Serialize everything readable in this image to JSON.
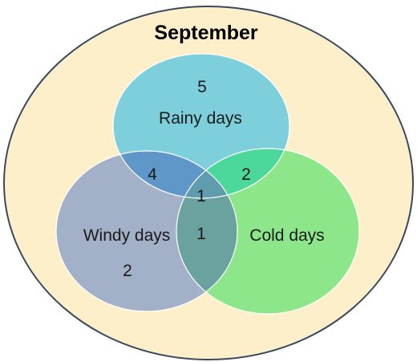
{
  "title": "September",
  "colors": {
    "universe_fill": "#fdefca",
    "universe_stroke": "#3a4a5e",
    "rainy": "#7ecfdc",
    "windy": "#a3b1c8",
    "cold": "#8ee68a",
    "rainy_windy": "#5e97c8",
    "rainy_cold": "#4cd89a",
    "windy_cold": "#6aa2a0",
    "all_three": "#5e9cae",
    "outline": "#ffffff"
  },
  "sets": {
    "rainy": {
      "label": "Rainy days",
      "only": "5"
    },
    "windy": {
      "label": "Windy days",
      "only": "2"
    },
    "cold": {
      "label": "Cold days",
      "only": ""
    }
  },
  "intersections": {
    "rainy_windy": "4",
    "rainy_cold": "2",
    "rainy_windy_cold": "1",
    "windy_cold": "1"
  }
}
